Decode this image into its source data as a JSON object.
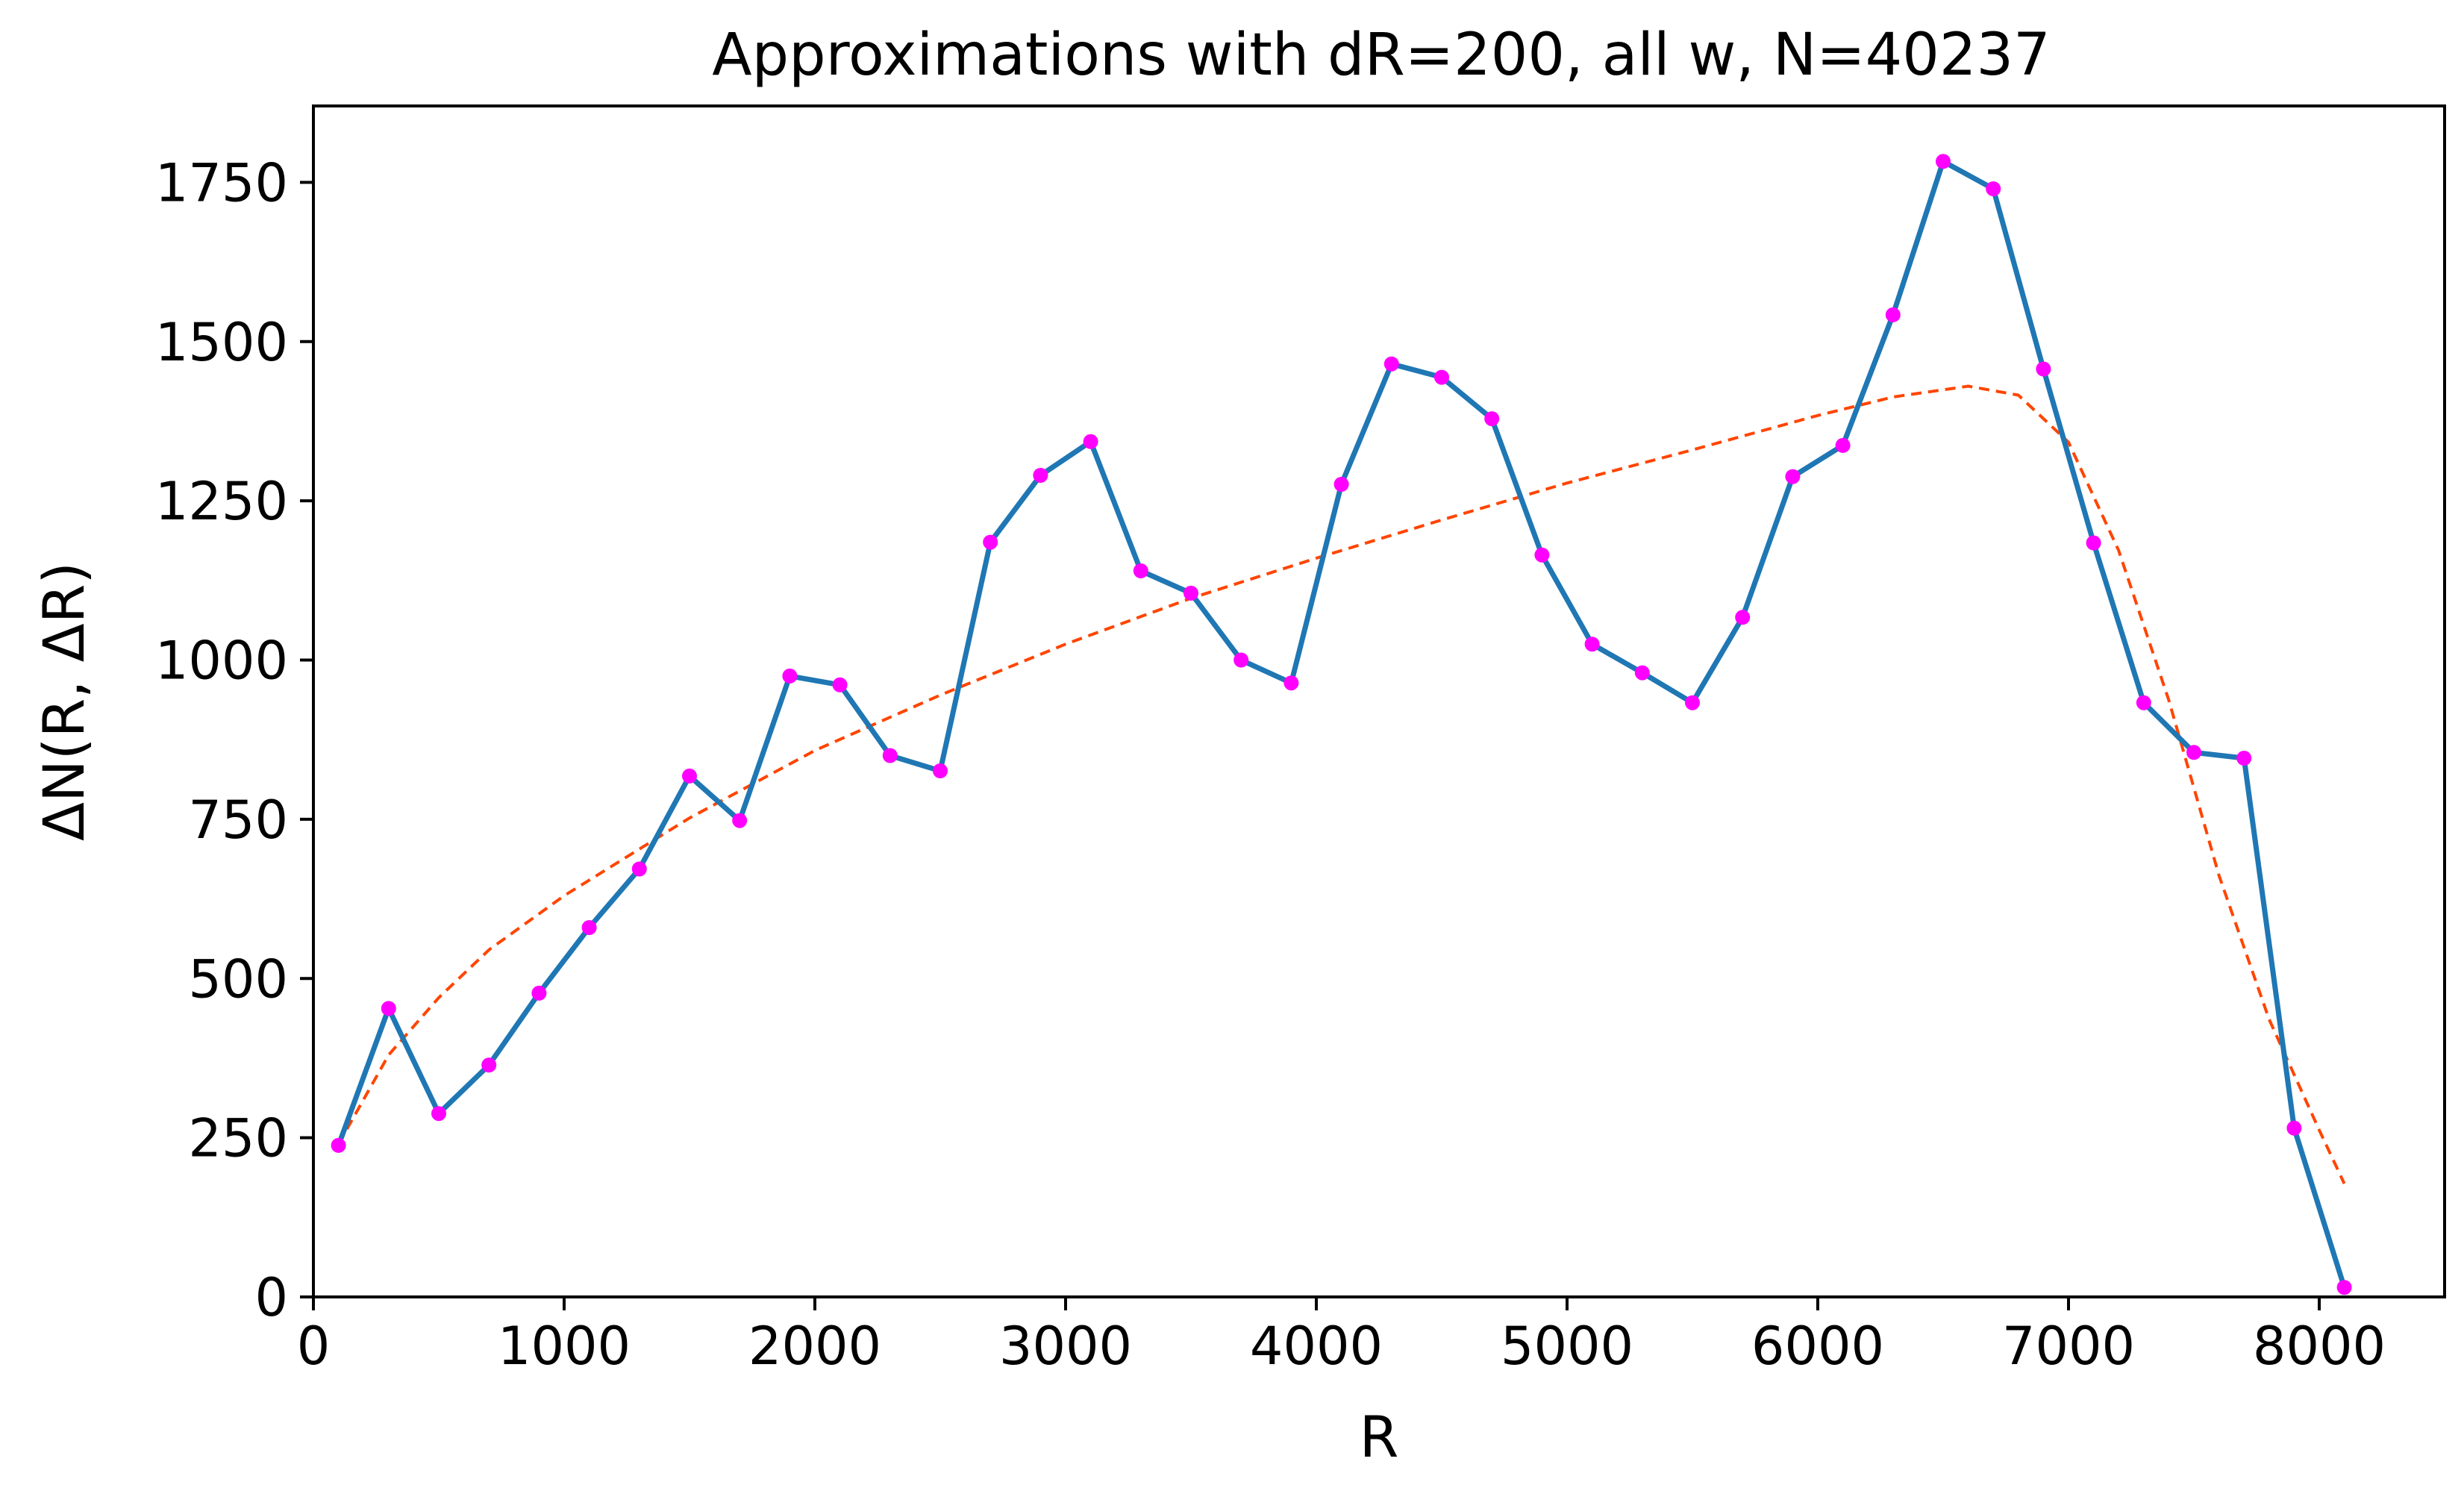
{
  "chart_data": {
    "type": "line",
    "title": "Approximations with dR=200, all w, N=40237",
    "xlabel": "R",
    "ylabel": "ΔN(R, ΔR)",
    "xlim": [
      0,
      8500
    ],
    "ylim": [
      0,
      1870
    ],
    "xticks": [
      0,
      1000,
      2000,
      3000,
      4000,
      5000,
      6000,
      7000,
      8000
    ],
    "yticks": [
      0,
      250,
      500,
      750,
      1000,
      1250,
      1500,
      1750
    ],
    "grid": false,
    "legend": "none",
    "series": [
      {
        "style": "solid line with markers",
        "line_color": "#1f77b4",
        "marker_color": "#ff00ff",
        "x": [
          100,
          300,
          500,
          700,
          900,
          1100,
          1300,
          1500,
          1700,
          1900,
          2100,
          2300,
          2500,
          2700,
          2900,
          3100,
          3300,
          3500,
          3700,
          3900,
          4100,
          4300,
          4500,
          4700,
          4900,
          5100,
          5300,
          5500,
          5700,
          5900,
          6100,
          6300,
          6500,
          6700,
          6900,
          7100,
          7300,
          7500,
          7700,
          7900,
          8100
        ],
        "y": [
          238,
          453,
          288,
          364,
          477,
          580,
          672,
          818,
          748,
          975,
          961,
          850,
          826,
          1185,
          1290,
          1343,
          1140,
          1105,
          1000,
          964,
          1276,
          1465,
          1444,
          1379,
          1165,
          1025,
          980,
          933,
          1067,
          1288,
          1337,
          1542,
          1783,
          1740,
          1457,
          1184,
          933,
          855,
          846,
          265,
          15
        ]
      },
      {
        "style": "dashed fit curve",
        "line_color": "#ff4500",
        "x": [
          100,
          300,
          500,
          700,
          1000,
          1500,
          2000,
          2500,
          3000,
          3500,
          4000,
          4500,
          5000,
          5500,
          6000,
          6300,
          6600,
          6800,
          7000,
          7200,
          7400,
          7600,
          7800,
          8000,
          8100
        ],
        "y": [
          240,
          380,
          470,
          545,
          630,
          752,
          858,
          945,
          1025,
          1097,
          1160,
          1220,
          1278,
          1330,
          1384,
          1413,
          1430,
          1416,
          1342,
          1172,
          937,
          662,
          436,
          262,
          178
        ]
      }
    ]
  }
}
